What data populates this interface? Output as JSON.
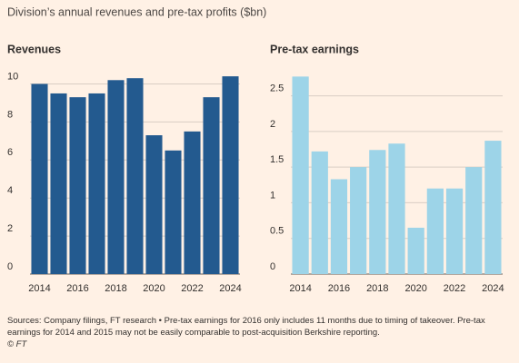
{
  "title": "Division’s annual revenues and pre-tax profits ($bn)",
  "chart_data": [
    {
      "type": "bar",
      "title": "Revenues",
      "categories": [
        "2014",
        null,
        "2016",
        null,
        "2018",
        null,
        "2020",
        null,
        "2022",
        null,
        "2024"
      ],
      "values": [
        10.0,
        9.5,
        9.3,
        9.5,
        10.2,
        10.3,
        7.3,
        6.5,
        7.5,
        9.3,
        10.4
      ],
      "color": "#235a8f",
      "ylim": [
        0,
        10.5
      ],
      "yticks": [
        0,
        2,
        4,
        6,
        8,
        10
      ],
      "grid": true
    },
    {
      "type": "bar",
      "title": "Pre-tax earnings",
      "categories": [
        "2014",
        null,
        "2016",
        null,
        "2018",
        null,
        "2020",
        null,
        "2022",
        null,
        "2024"
      ],
      "values": [
        2.77,
        1.72,
        1.33,
        1.5,
        1.74,
        1.83,
        0.65,
        1.2,
        1.2,
        1.5,
        1.87
      ],
      "color": "#9dd4e8",
      "ylim": [
        0,
        2.8
      ],
      "yticks": [
        0,
        0.5,
        1,
        1.5,
        2,
        2.5
      ],
      "grid": true
    }
  ],
  "source": "Sources: Company filings, FT research • Pre-tax earnings for 2016 only includes 11 months due to timing of takeover. Pre-tax earnings for 2014 and 2015 may not be easily comparable to post-acquisition Berkshire reporting.",
  "copyright": "© FT"
}
